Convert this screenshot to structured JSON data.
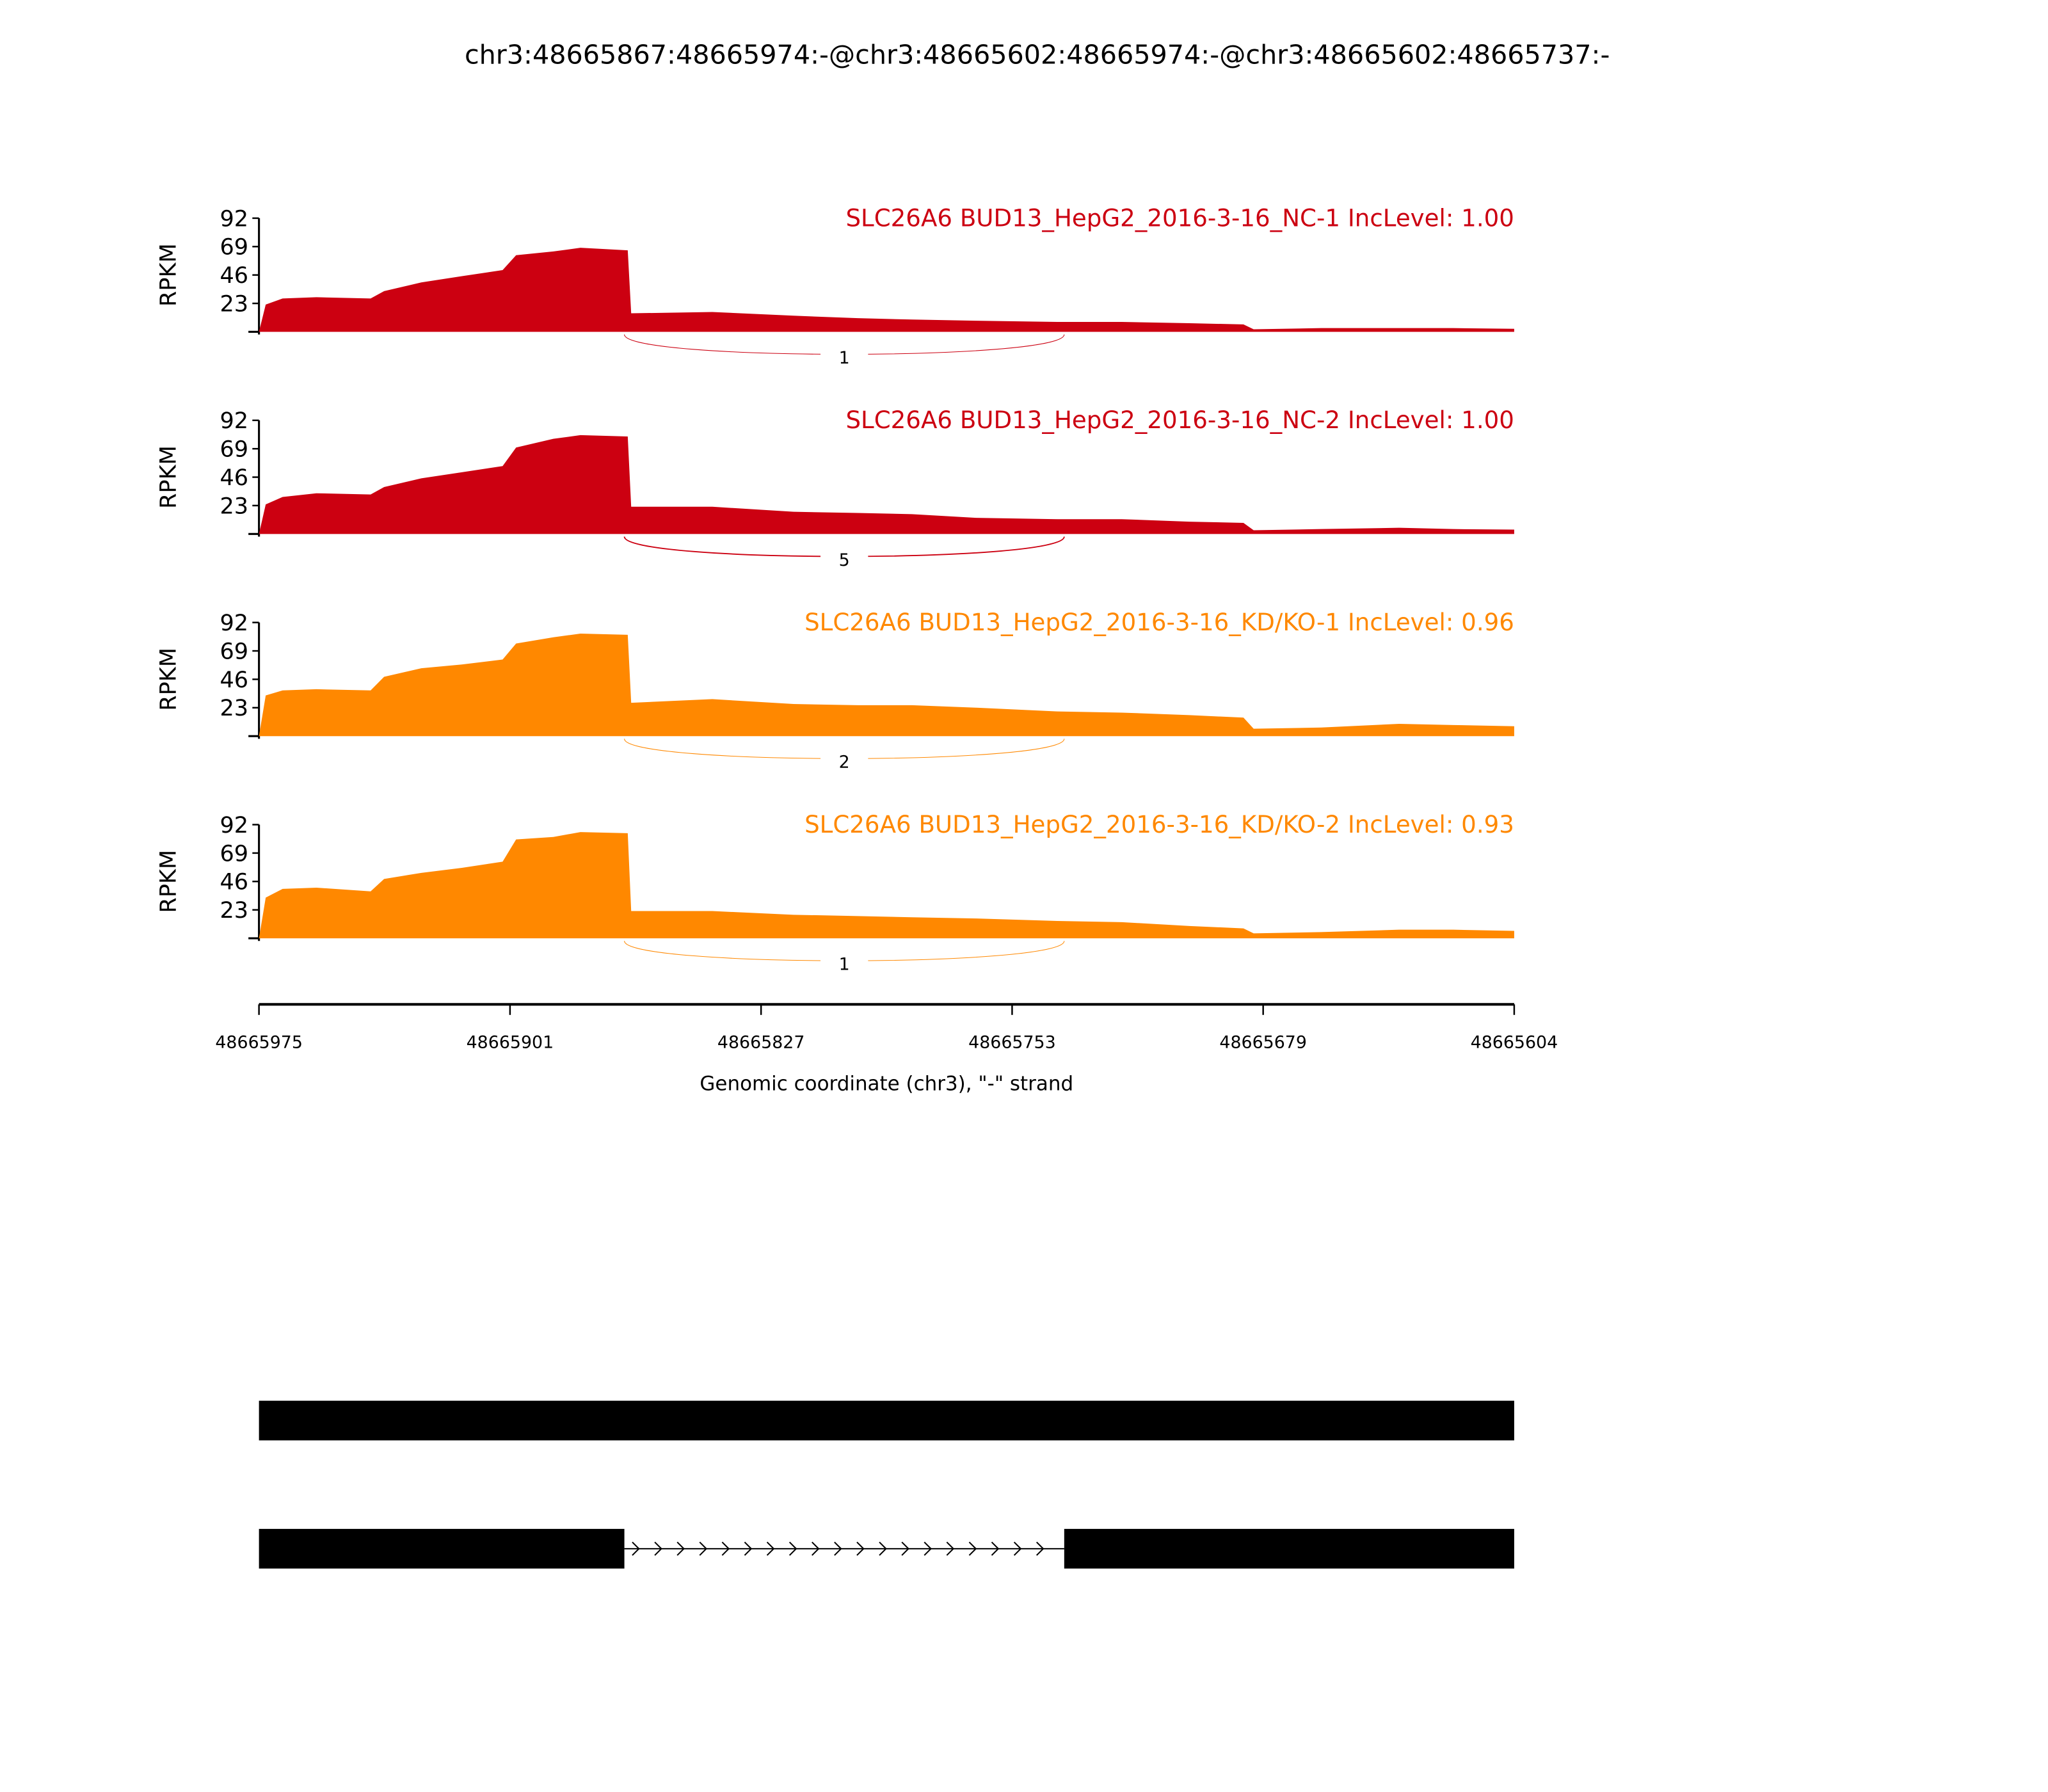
{
  "chart_data": {
    "type": "area",
    "title": "chr3:48665867:48665974:-@chr3:48665602:48665974:-@chr3:48665602:48665737:-",
    "xlabel": "Genomic coordinate (chr3), \"-\" strand",
    "ylabel": "RPKM",
    "xlim": [
      48665975,
      48665604
    ],
    "ylim": [
      0,
      92
    ],
    "x_ticks": [
      "48665975",
      "48665901",
      "48665827",
      "48665753",
      "48665679",
      "48665604"
    ],
    "y_ticks": [
      "23",
      "46",
      "69",
      "92"
    ],
    "grid": false,
    "x": [
      48665975,
      48665973,
      48665968,
      48665958,
      48665942,
      48665938,
      48665927,
      48665915,
      48665903,
      48665899,
      48665888,
      48665880,
      48665866,
      48665865,
      48665841,
      48665817,
      48665798,
      48665782,
      48665763,
      48665739,
      48665720,
      48665700,
      48665684,
      48665681,
      48665661,
      48665638,
      48665622,
      48665604
    ],
    "junction": {
      "start": 48665867,
      "end": 48665737
    },
    "series": [
      {
        "name": "SLC26A6 BUD13_HepG2_2016-3-16_NC-1 IncLevel: 1.00",
        "color": "#cc0011",
        "junction_count": "1",
        "values": [
          0,
          22,
          27,
          28,
          27,
          33,
          40,
          45,
          50,
          62,
          65,
          68,
          66,
          15,
          16,
          13,
          11,
          10,
          9,
          8,
          8,
          7,
          6,
          2,
          3,
          3,
          3,
          2.5
        ]
      },
      {
        "name": "SLC26A6 BUD13_HepG2_2016-3-16_NC-2 IncLevel: 1.00",
        "color": "#cc0011",
        "junction_count": "5",
        "values": [
          0,
          24,
          30,
          33,
          32,
          38,
          45,
          50,
          55,
          70,
          77,
          80,
          79,
          22,
          22,
          18,
          17,
          16,
          13,
          12,
          12,
          10,
          9,
          3,
          4,
          5,
          4,
          3.5
        ]
      },
      {
        "name": "SLC26A6 BUD13_HepG2_2016-3-16_KD/KO-1 IncLevel: 0.96",
        "color": "#ff8800",
        "junction_count": "2",
        "values": [
          0,
          33,
          37,
          38,
          37,
          48,
          55,
          58,
          62,
          75,
          80,
          83,
          82,
          27,
          30,
          26,
          25,
          25,
          23,
          20,
          19,
          17,
          15,
          6,
          7,
          10,
          9,
          8
        ]
      },
      {
        "name": "SLC26A6 BUD13_HepG2_2016-3-16_KD/KO-2 IncLevel: 0.93",
        "color": "#ff8800",
        "junction_count": "1",
        "values": [
          0,
          33,
          40,
          41,
          38,
          48,
          53,
          57,
          62,
          80,
          82,
          86,
          85,
          22,
          22,
          19,
          18,
          17,
          16,
          14,
          13,
          10,
          8,
          4,
          5,
          7,
          7,
          6
        ]
      }
    ],
    "gene_models": [
      {
        "exons": [
          [
            48665975,
            48665604
          ]
        ]
      },
      {
        "exons": [
          [
            48665975,
            48665867
          ],
          [
            48665737,
            48665604
          ]
        ],
        "strand_arrow": ">"
      }
    ]
  }
}
